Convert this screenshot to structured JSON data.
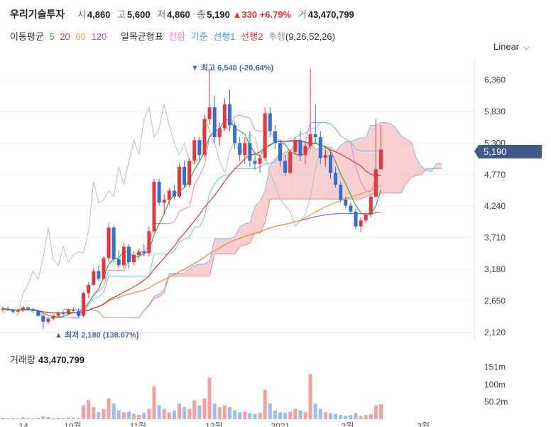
{
  "stock": {
    "name": "우리기술투자",
    "open_label": "시",
    "open": "4,860",
    "high_label": "고",
    "high": "5,600",
    "low_label": "저",
    "low": "4,860",
    "close_label": "종",
    "close": "5,190",
    "change": "330",
    "change_pct": "+6.79%",
    "volume_label": "거",
    "volume": "43,470,799"
  },
  "indicators": {
    "ma_label": "이동평균",
    "ma5": "5",
    "ma20": "20",
    "ma60": "60",
    "ma120": "120",
    "ichimoku_label": "일목균형표",
    "conversion": "전환",
    "base": "기준",
    "span1": "선행1",
    "span2": "선행2",
    "lagging": "후행",
    "params": "(9,26,52,26)"
  },
  "scale_label": "Linear",
  "annotations": {
    "high": "▼ 최고 6,540 (-20.64%)",
    "low": "▲ 최저 2,180 (138.07%)",
    "last_price": "5,190"
  },
  "volume_panel": {
    "title": "거래량",
    "value": "43,470,799"
  },
  "colors": {
    "up": "#e5373b",
    "down": "#2f6fd6",
    "ma5": "#43a047",
    "ma20": "#e53935",
    "ma60": "#f39c39",
    "ma120": "#9c5fe0",
    "conversion": "#f07fd9",
    "base": "#5ec3ef",
    "cloud_up": "#f7c6c6",
    "cloud_down": "#bcd7f5",
    "lagging": "#bdbdbd",
    "price_tag": "#3f5a8a"
  },
  "chart_data": {
    "type": "candlestick",
    "price_axis": {
      "ticks": [
        "6,360",
        "5,830",
        "5,300",
        "4,770",
        "4,240",
        "3,710",
        "3,180",
        "2,650",
        "2,120"
      ],
      "range": [
        2000,
        6700
      ]
    },
    "volume_axis": {
      "ticks": [
        "151m",
        "100m",
        "50.2m"
      ]
    },
    "time_axis": {
      "labels": [
        "14",
        "10월",
        "11월",
        "12월",
        "2021",
        "2월",
        "3월"
      ]
    },
    "candles": [
      [
        2500,
        2560,
        2460,
        2520
      ],
      [
        2520,
        2560,
        2480,
        2500
      ],
      [
        2500,
        2520,
        2440,
        2470
      ],
      [
        2470,
        2520,
        2450,
        2490
      ],
      [
        2490,
        2560,
        2470,
        2540
      ],
      [
        2540,
        2560,
        2480,
        2510
      ],
      [
        2510,
        2540,
        2450,
        2480
      ],
      [
        2480,
        2500,
        2380,
        2400
      ],
      [
        2400,
        2440,
        2180,
        2300
      ],
      [
        2300,
        2380,
        2260,
        2350
      ],
      [
        2350,
        2420,
        2320,
        2400
      ],
      [
        2400,
        2470,
        2380,
        2450
      ],
      [
        2450,
        2480,
        2400,
        2430
      ],
      [
        2430,
        2520,
        2410,
        2500
      ],
      [
        2500,
        2540,
        2470,
        2480
      ],
      [
        2480,
        2520,
        2380,
        2400
      ],
      [
        2400,
        2800,
        2380,
        2780
      ],
      [
        2780,
        2960,
        2700,
        2920
      ],
      [
        2920,
        3200,
        2900,
        3150
      ],
      [
        3150,
        3250,
        2980,
        3020
      ],
      [
        3020,
        3400,
        3000,
        3370
      ],
      [
        3370,
        3950,
        3300,
        3880
      ],
      [
        3880,
        3920,
        3300,
        3350
      ],
      [
        3350,
        3500,
        3200,
        3250
      ],
      [
        3250,
        3620,
        3200,
        3560
      ],
      [
        3560,
        3600,
        3200,
        3300
      ],
      [
        3300,
        3480,
        3250,
        3420
      ],
      [
        3420,
        3520,
        3350,
        3480
      ],
      [
        3480,
        3600,
        3400,
        3450
      ],
      [
        3450,
        3900,
        3400,
        3820
      ],
      [
        3820,
        4700,
        3800,
        4650
      ],
      [
        4650,
        4700,
        4250,
        4300
      ],
      [
        4300,
        4450,
        4100,
        4350
      ],
      [
        4350,
        4550,
        4250,
        4500
      ],
      [
        4500,
        4600,
        4350,
        4400
      ],
      [
        4400,
        4950,
        4380,
        4900
      ],
      [
        4900,
        5000,
        4550,
        4600
      ],
      [
        4600,
        5050,
        4550,
        5000
      ],
      [
        5000,
        5400,
        4950,
        5350
      ],
      [
        5350,
        5400,
        5000,
        5100
      ],
      [
        5100,
        5750,
        5050,
        5700
      ],
      [
        5700,
        6540,
        5600,
        5900
      ],
      [
        5900,
        6100,
        5300,
        5400
      ],
      [
        5400,
        5650,
        5250,
        5550
      ],
      [
        5550,
        6050,
        5500,
        5950
      ],
      [
        5950,
        6200,
        5500,
        5600
      ],
      [
        5600,
        5650,
        5200,
        5300
      ],
      [
        5300,
        5400,
        5000,
        5100
      ],
      [
        5100,
        5400,
        4950,
        5300
      ],
      [
        5300,
        5500,
        4900,
        5000
      ],
      [
        5000,
        5150,
        4850,
        4950
      ],
      [
        4950,
        5100,
        4800,
        5050
      ],
      [
        5050,
        5900,
        5000,
        5800
      ],
      [
        5800,
        5900,
        5400,
        5500
      ],
      [
        5500,
        5600,
        5200,
        5300
      ],
      [
        5300,
        5350,
        4900,
        5000
      ],
      [
        5000,
        5100,
        4750,
        4800
      ],
      [
        4800,
        5200,
        4780,
        5150
      ],
      [
        5150,
        5400,
        5100,
        5350
      ],
      [
        5350,
        5500,
        5000,
        5100
      ],
      [
        5100,
        5300,
        4950,
        5250
      ],
      [
        5250,
        6540,
        5200,
        5450
      ],
      [
        5450,
        5950,
        5300,
        5400
      ],
      [
        5400,
        5500,
        4950,
        5050
      ],
      [
        5050,
        5200,
        4900,
        5100
      ],
      [
        5100,
        5150,
        4700,
        4800
      ],
      [
        4800,
        4900,
        4550,
        4600
      ],
      [
        4600,
        4650,
        4300,
        4350
      ],
      [
        4350,
        4400,
        4200,
        4250
      ],
      [
        4250,
        4300,
        4100,
        4150
      ],
      [
        4150,
        4200,
        3850,
        3900
      ],
      [
        3900,
        4050,
        3800,
        4000
      ],
      [
        4000,
        4150,
        3950,
        4100
      ],
      [
        4100,
        4450,
        4050,
        4400
      ],
      [
        4400,
        5700,
        4380,
        4860
      ],
      [
        4860,
        5600,
        4860,
        5190
      ]
    ],
    "volume_m": [
      4,
      3,
      3,
      2,
      5,
      3,
      2,
      4,
      8,
      6,
      3,
      4,
      3,
      5,
      4,
      3,
      40,
      55,
      35,
      20,
      30,
      60,
      45,
      25,
      20,
      22,
      15,
      12,
      18,
      30,
      95,
      40,
      30,
      20,
      25,
      45,
      35,
      30,
      55,
      40,
      60,
      120,
      45,
      35,
      40,
      35,
      25,
      20,
      22,
      18,
      15,
      18,
      85,
      45,
      25,
      20,
      18,
      22,
      30,
      25,
      20,
      130,
      45,
      30,
      20,
      18,
      15,
      12,
      10,
      12,
      18,
      10,
      12,
      15,
      40,
      43
    ]
  }
}
